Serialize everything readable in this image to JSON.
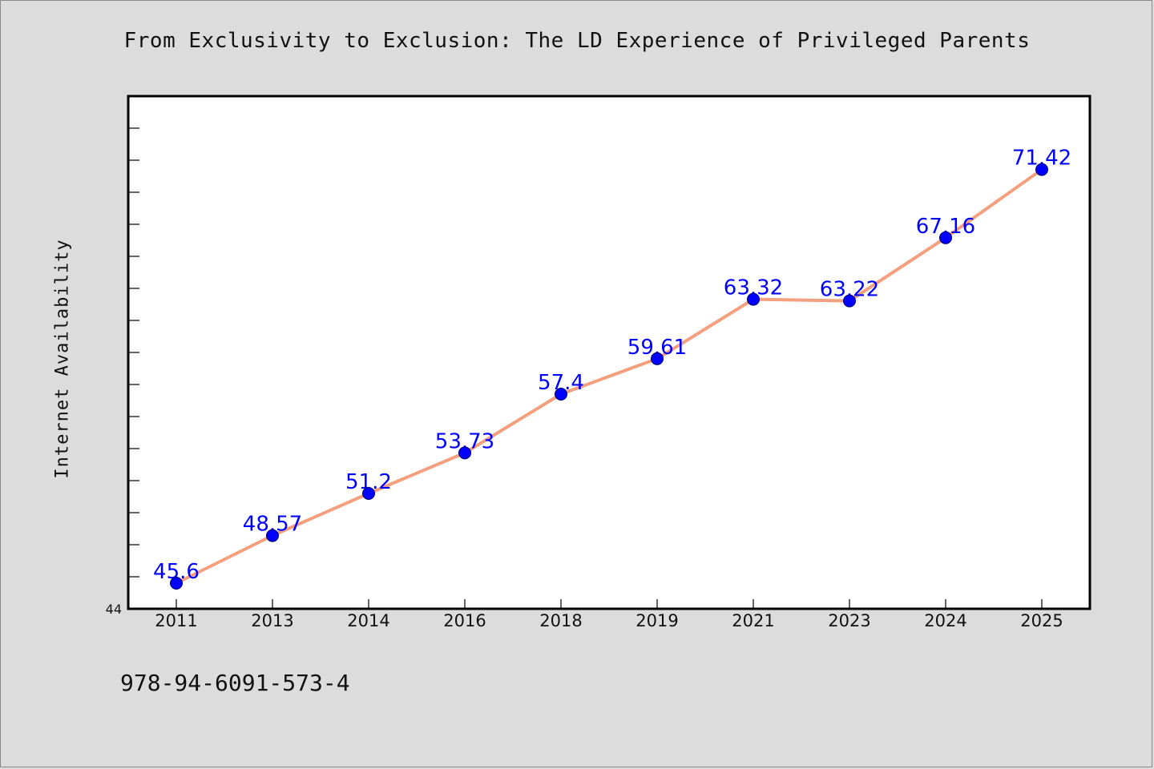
{
  "chart_data": {
    "type": "line",
    "title": "From Exclusivity to Exclusion: The LD Experience of Privileged Parents",
    "xlabel": "",
    "ylabel": "Internet Availability",
    "categories": [
      "2011",
      "2013",
      "2014",
      "2016",
      "2018",
      "2019",
      "2021",
      "2023",
      "2024",
      "2025"
    ],
    "values": [
      45.6,
      48.57,
      51.2,
      53.73,
      57.4,
      59.61,
      63.32,
      63.22,
      67.16,
      71.42
    ],
    "data_labels": [
      "45.6",
      "48.57",
      "51.2",
      "53.73",
      "57.4",
      "59.61",
      "63.32",
      "63.22",
      "67.16",
      "71.42"
    ],
    "ylim": [
      44,
      76
    ],
    "y_tick_labels": [
      "44"
    ],
    "grid": false,
    "line_color": "#f4a07f",
    "marker_color": "#0000ff",
    "label_color": "#0000ff"
  },
  "footer": {
    "code": "978-94-6091-573-4"
  }
}
